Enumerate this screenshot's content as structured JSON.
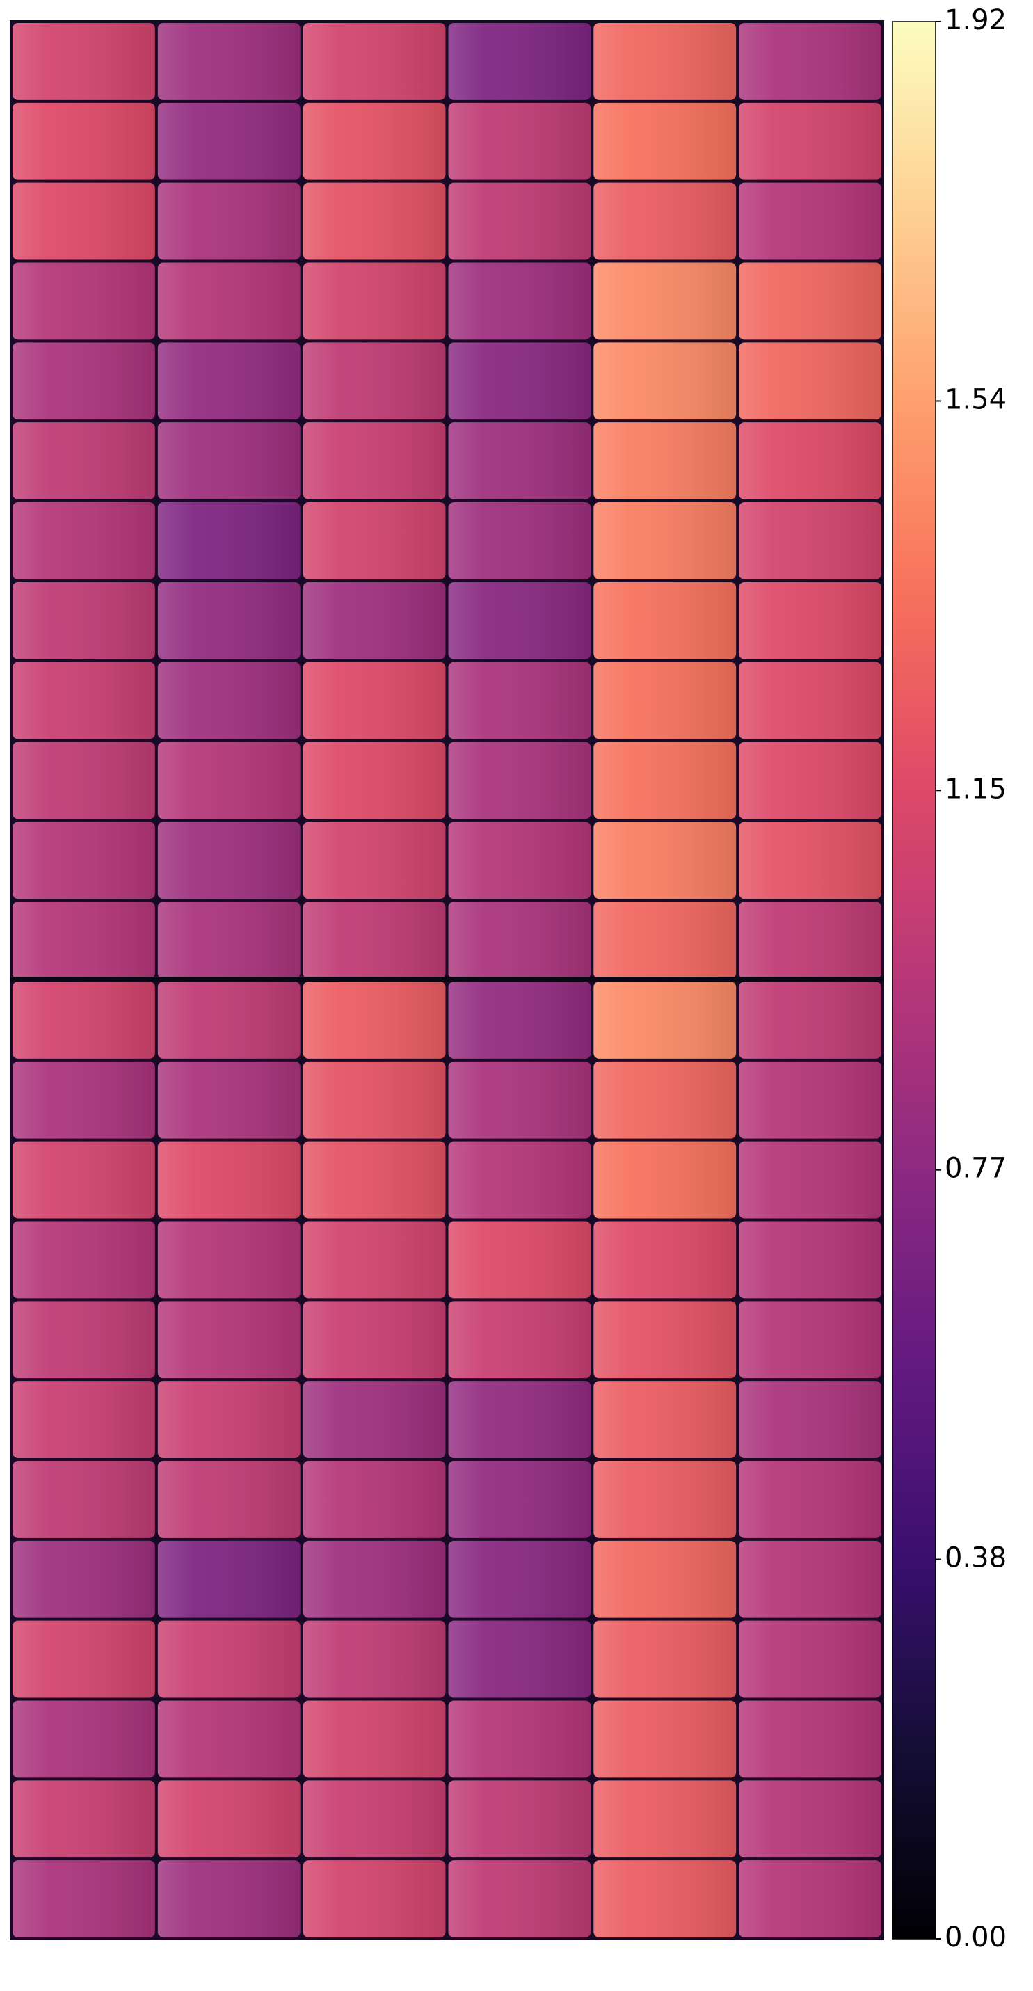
{
  "chart_data": {
    "type": "heatmap",
    "colormap": "magma",
    "z": [
      [
        1.1,
        0.85,
        1.1,
        0.7,
        1.3,
        0.9
      ],
      [
        1.15,
        0.8,
        1.2,
        1.0,
        1.35,
        1.1
      ],
      [
        1.15,
        0.9,
        1.2,
        1.0,
        1.25,
        0.95
      ],
      [
        0.95,
        0.95,
        1.1,
        0.85,
        1.45,
        1.3
      ],
      [
        0.9,
        0.8,
        1.0,
        0.75,
        1.45,
        1.3
      ],
      [
        1.0,
        0.85,
        1.05,
        0.85,
        1.4,
        1.15
      ],
      [
        0.95,
        0.7,
        1.1,
        0.85,
        1.4,
        1.1
      ],
      [
        1.0,
        0.8,
        0.85,
        0.75,
        1.35,
        1.15
      ],
      [
        1.05,
        0.85,
        1.15,
        0.9,
        1.35,
        1.15
      ],
      [
        1.0,
        0.95,
        1.15,
        0.9,
        1.35,
        1.15
      ],
      [
        0.95,
        0.85,
        1.1,
        0.95,
        1.4,
        1.2
      ],
      [
        0.95,
        0.9,
        1.0,
        0.9,
        1.3,
        1.0
      ],
      [
        1.1,
        1.0,
        1.25,
        0.8,
        1.45,
        1.0
      ],
      [
        0.9,
        0.9,
        1.2,
        0.9,
        1.3,
        0.95
      ],
      [
        1.1,
        1.15,
        1.2,
        0.95,
        1.35,
        0.95
      ],
      [
        0.95,
        0.95,
        1.1,
        1.15,
        1.15,
        0.95
      ],
      [
        1.0,
        0.95,
        1.05,
        1.05,
        1.2,
        0.95
      ],
      [
        1.05,
        1.05,
        0.85,
        0.8,
        1.25,
        0.9
      ],
      [
        1.0,
        1.0,
        0.95,
        0.8,
        1.25,
        0.95
      ],
      [
        0.85,
        0.7,
        0.85,
        0.75,
        1.3,
        0.95
      ],
      [
        1.1,
        1.05,
        1.0,
        0.75,
        1.25,
        0.95
      ],
      [
        0.9,
        0.95,
        1.1,
        0.95,
        1.25,
        0.95
      ],
      [
        1.05,
        1.1,
        1.05,
        1.0,
        1.25,
        0.95
      ],
      [
        0.9,
        0.85,
        1.1,
        1.0,
        1.25,
        0.95
      ]
    ],
    "clim": [
      0,
      1.92
    ],
    "cticks": [
      {
        "value": 0,
        "label": "0.00"
      },
      0.38,
      0.77,
      1.15,
      1.54,
      1.92
    ]
  }
}
